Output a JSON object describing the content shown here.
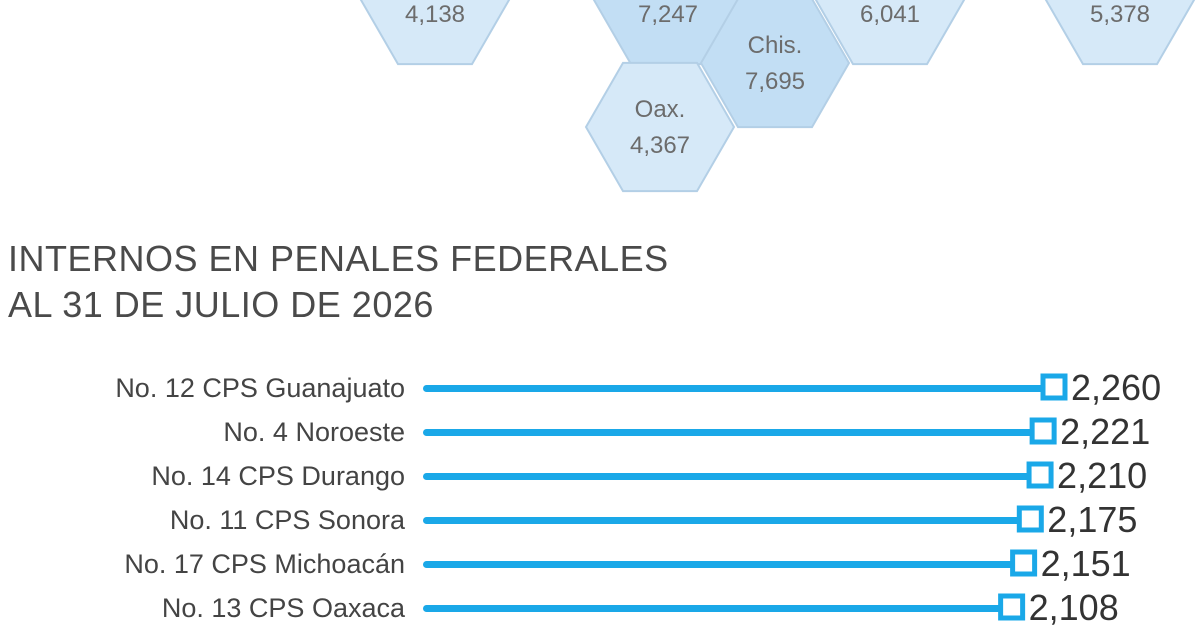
{
  "hex_map": {
    "fill_color": "#d6e9f8",
    "fill_color_dark": "#c2def4",
    "stroke_color": "#b3cfe6",
    "text_color": "#6c6c6c",
    "cells": [
      {
        "state": "",
        "value": "4,138"
      },
      {
        "state": "",
        "value": "7,247"
      },
      {
        "state": "",
        "value": "6,041"
      },
      {
        "state": "",
        "value": "5,378"
      },
      {
        "state": "Chis.",
        "value": "7,695"
      },
      {
        "state": "Oax.",
        "value": "4,367"
      }
    ]
  },
  "chart_data": {
    "type": "bar",
    "title": "INTERNOS EN PENALES FEDERALES",
    "subtitle": "AL 31 DE JULIO DE 2026",
    "categories": [
      "No. 12 CPS Guanajuato",
      "No. 4 Noroeste",
      "No. 14 CPS Durango",
      "No. 11 CPS Sonora",
      "No. 17 CPS Michoacán",
      "No. 13 CPS Oaxaca"
    ],
    "values": [
      2260,
      2221,
      2210,
      2175,
      2151,
      2108
    ],
    "value_labels": [
      "2,260",
      "2,221",
      "2,210",
      "2,175",
      "2,151",
      "2,108"
    ],
    "orientation": "horizontal",
    "bar_color": "#1aa8e8",
    "marker_color": "#1aa8e8",
    "label_color": "#444444",
    "value_color": "#333333"
  }
}
